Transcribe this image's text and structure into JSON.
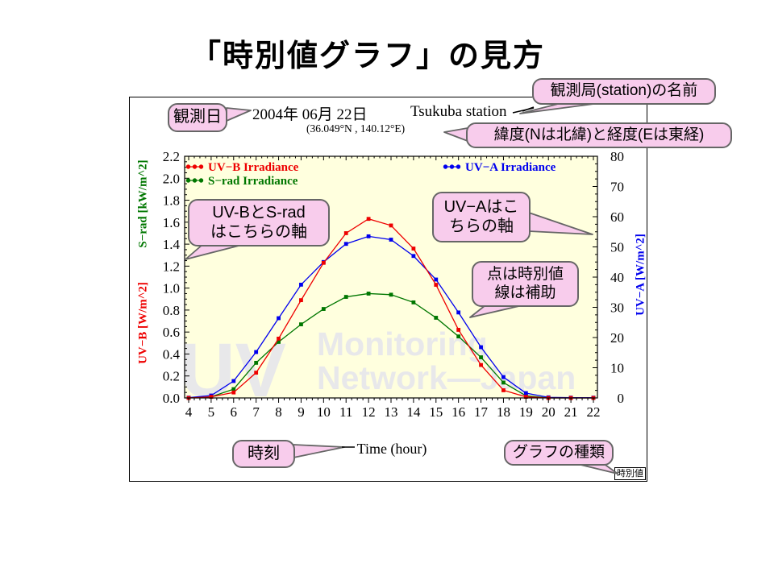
{
  "slide": {
    "title": "「時別値グラフ」の見方"
  },
  "header": {
    "date": "2004年 06月 22日",
    "station": "Tsukuba station",
    "coordinates": "(36.049°N , 140.12°E)"
  },
  "callouts": {
    "date": "観測日",
    "station": "観測局(station)の名前",
    "latlon": "緯度(Nは北緯)と経度(Eは東経)",
    "left_axis_line1": "UV-BとS-rad",
    "left_axis_line2": "はこちらの軸",
    "right_axis_line1": "UV−Aはこ",
    "right_axis_line2": "ちらの軸",
    "points_line1": "点は時別値",
    "points_line2": "線は補助",
    "time": "時刻",
    "graph_type": "グラフの種類"
  },
  "footer_note": "時別値",
  "watermark": {
    "big": "UV",
    "line1": "Monitoring",
    "line2": "Network—Japan"
  },
  "colors": {
    "uvb": "#ee0000",
    "srad": "#007700",
    "uva": "#0000ee",
    "plot_bg": "#ffffde",
    "bubble": "#f8ccec",
    "watermark": "#e3e3ee"
  },
  "chart_data": {
    "type": "line",
    "title": "",
    "xlabel": "Time (hour)",
    "ylabel_left_red": "UV−B [W/m^2]",
    "ylabel_left_green": "S−rad [kW/m^2]",
    "ylabel_right": "UV−A [W/m^2]",
    "xlim": [
      4,
      22
    ],
    "ylim_left": [
      0,
      2.2
    ],
    "ylim_right": [
      0,
      80
    ],
    "x": [
      4,
      5,
      6,
      7,
      8,
      9,
      10,
      11,
      12,
      13,
      14,
      15,
      16,
      17,
      18,
      19,
      20,
      21,
      22
    ],
    "xticks": [
      4,
      5,
      6,
      7,
      8,
      9,
      10,
      11,
      12,
      13,
      14,
      15,
      16,
      17,
      18,
      19,
      20,
      21,
      22
    ],
    "yticks_left": [
      "0.0",
      "0.2",
      "0.4",
      "0.6",
      "0.8",
      "1.0",
      "1.2",
      "1.4",
      "1.6",
      "1.8",
      "2.0",
      "2.2"
    ],
    "yticks_right": [
      0,
      10,
      20,
      30,
      40,
      50,
      60,
      70,
      80
    ],
    "grid": false,
    "legend_position": "inside-top",
    "series": [
      {
        "name": "UV−B Irradiance",
        "color": "#ee0000",
        "axis": "left",
        "values": [
          0.0,
          0.01,
          0.05,
          0.23,
          0.54,
          0.89,
          1.23,
          1.5,
          1.63,
          1.57,
          1.36,
          1.03,
          0.62,
          0.3,
          0.07,
          0.01,
          0.0,
          0.0,
          0.0
        ]
      },
      {
        "name": "S−rad Irradiance",
        "color": "#007700",
        "axis": "left",
        "values": [
          0.0,
          0.01,
          0.08,
          0.32,
          0.51,
          0.67,
          0.81,
          0.92,
          0.95,
          0.94,
          0.87,
          0.73,
          0.56,
          0.37,
          0.14,
          0.02,
          0.0,
          0.0,
          0.0
        ]
      },
      {
        "name": "UV−A Irradiance",
        "color": "#0000ee",
        "axis": "right",
        "values": [
          0.1,
          0.8,
          5.6,
          15.2,
          26.4,
          37.5,
          45.0,
          51.0,
          53.5,
          52.4,
          47.0,
          39.2,
          28.3,
          16.8,
          6.9,
          1.6,
          0.2,
          0.1,
          0.1
        ]
      }
    ]
  }
}
